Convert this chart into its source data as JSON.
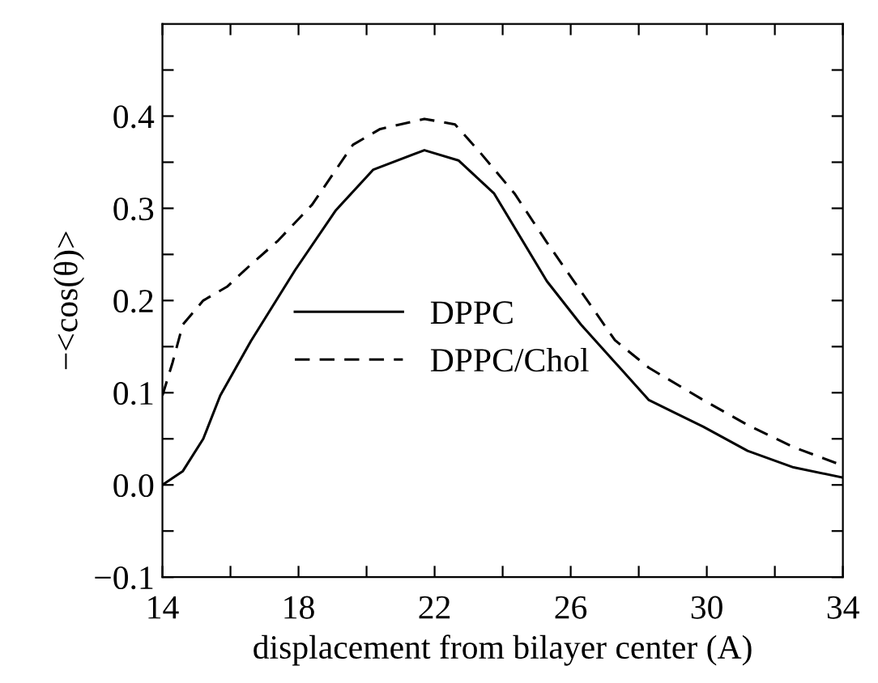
{
  "chart_data": {
    "type": "line",
    "xlabel": "displacement from bilayer center (A)",
    "ylabel": "−<cos(θ)>",
    "series": [
      {
        "name": "DPPC",
        "color": "#000000",
        "line_style": "solid",
        "x": [
          14,
          14.6,
          15.2,
          15.7,
          16.6,
          17.9,
          19.1,
          20.2,
          21.7,
          22.7,
          23.75,
          25.3,
          26.3,
          27.3,
          28.3,
          29.9,
          31.2,
          32.55,
          34
        ],
        "values": [
          0.0,
          0.015,
          0.05,
          0.097,
          0.156,
          0.233,
          0.298,
          0.342,
          0.363,
          0.352,
          0.316,
          0.221,
          0.174,
          0.133,
          0.092,
          0.063,
          0.037,
          0.019,
          0.008
        ]
      },
      {
        "name": "DPPC/Chol",
        "color": "#000000",
        "line_style": "dashed",
        "x": [
          14,
          14.3,
          14.6,
          15.2,
          15.9,
          16.6,
          17.4,
          18.4,
          19.6,
          20.4,
          21.7,
          22.6,
          23.35,
          24.35,
          25.3,
          26.3,
          27.3,
          28.3,
          29.9,
          31.2,
          32.55,
          34
        ],
        "values": [
          0.097,
          0.133,
          0.174,
          0.2,
          0.215,
          0.239,
          0.265,
          0.304,
          0.369,
          0.386,
          0.397,
          0.391,
          0.36,
          0.316,
          0.263,
          0.21,
          0.157,
          0.127,
          0.092,
          0.065,
          0.041,
          0.021
        ]
      }
    ],
    "xlim": [
      14,
      34
    ],
    "ylim": [
      -0.1,
      0.5
    ],
    "xticks": [
      14,
      {
        "value": 16,
        "label": null
      },
      18,
      {
        "value": 20,
        "label": null
      },
      22,
      {
        "value": 24,
        "label": null
      },
      26,
      {
        "value": 28,
        "label": null
      },
      30,
      {
        "value": 32,
        "label": null
      },
      34
    ],
    "yticks": [
      {
        "value": -0.1,
        "label": "−0.1"
      },
      {
        "value": -0.05,
        "label": null
      },
      {
        "value": 0,
        "label": "0.0"
      },
      {
        "value": 0.05,
        "label": null
      },
      0.1,
      {
        "value": 0.15,
        "label": null
      },
      0.2,
      {
        "value": 0.25,
        "label": null
      },
      0.3,
      {
        "value": 0.35,
        "label": null
      },
      0.4,
      {
        "value": 0.45,
        "label": null
      }
    ],
    "grid": false,
    "legend": "center left"
  }
}
